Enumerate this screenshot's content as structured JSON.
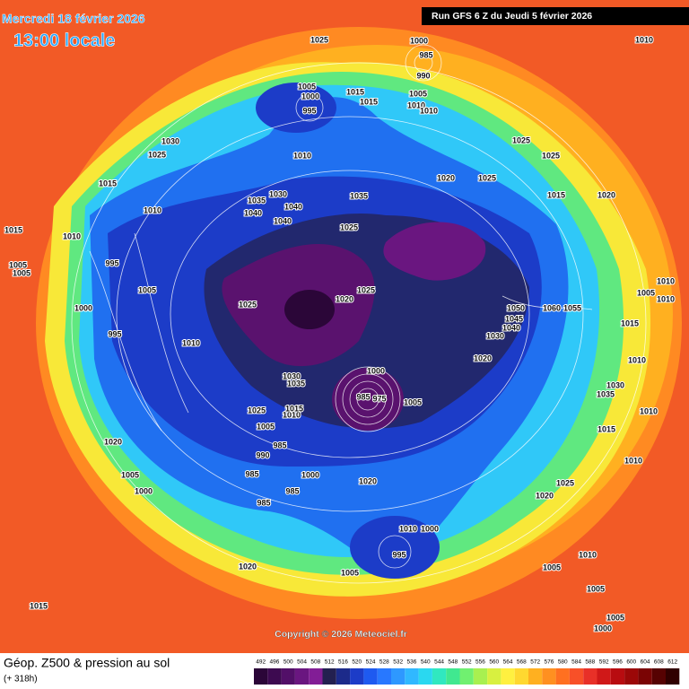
{
  "header": {
    "date": "Mercredi 18 février 2026",
    "time": "13:00 locale",
    "run": "Run GFS 6 Z du Jeudi 5 février 2026"
  },
  "copyright": "Copyright © 2026 Meteociel.fr",
  "footer": {
    "title": "Géop. Z500 & pression au sol",
    "lead": "(+ 318h)"
  },
  "pressure_labels": [
    1025,
    1000,
    985,
    990,
    1010,
    1005,
    1000,
    995,
    1015,
    1015,
    1005,
    1010,
    1010,
    1030,
    1025,
    1025,
    1025,
    1015,
    1010,
    1030,
    1035,
    1040,
    1040,
    1040,
    1035,
    1020,
    1025,
    1015,
    1020,
    1010,
    1015,
    1010,
    1025,
    995,
    1005,
    1005,
    1005,
    1025,
    1020,
    1025,
    1050,
    1060,
    1055,
    1045,
    1040,
    1030,
    1010,
    1005,
    1010,
    1015,
    1000,
    995,
    1010,
    1020,
    1010,
    1030,
    1035,
    1000,
    985,
    975,
    1005,
    1030,
    1035,
    1025,
    1010,
    1015,
    1010,
    1005,
    1015,
    985,
    1020,
    990,
    1010,
    985,
    1000,
    1020,
    1025,
    1005,
    1000,
    985,
    1020,
    985,
    1010,
    1000,
    995,
    1010,
    1005,
    1005,
    1020,
    1005,
    1015,
    1005,
    1000
  ],
  "legend": {
    "ticks": [
      492,
      496,
      500,
      504,
      508,
      512,
      516,
      520,
      524,
      528,
      532,
      536,
      540,
      544,
      548,
      552,
      556,
      560,
      564,
      568,
      572,
      576,
      580,
      584,
      588,
      592,
      596,
      600,
      604,
      608,
      612
    ],
    "colors": [
      "#2b0638",
      "#3d0a50",
      "#520f68",
      "#6a1680",
      "#821d96",
      "#232050",
      "#1c2a8a",
      "#1c3cc8",
      "#1e5af0",
      "#2878ff",
      "#2e98ff",
      "#30b8ff",
      "#2ad8f0",
      "#30e8c0",
      "#40e890",
      "#70f070",
      "#a8f050",
      "#d8f040",
      "#fff040",
      "#ffd830",
      "#ffb020",
      "#ff9020",
      "#ff7020",
      "#f85028",
      "#e83028",
      "#d01818",
      "#b80c10",
      "#9c0808",
      "#7a0404",
      "#560202",
      "#300000"
    ]
  }
}
